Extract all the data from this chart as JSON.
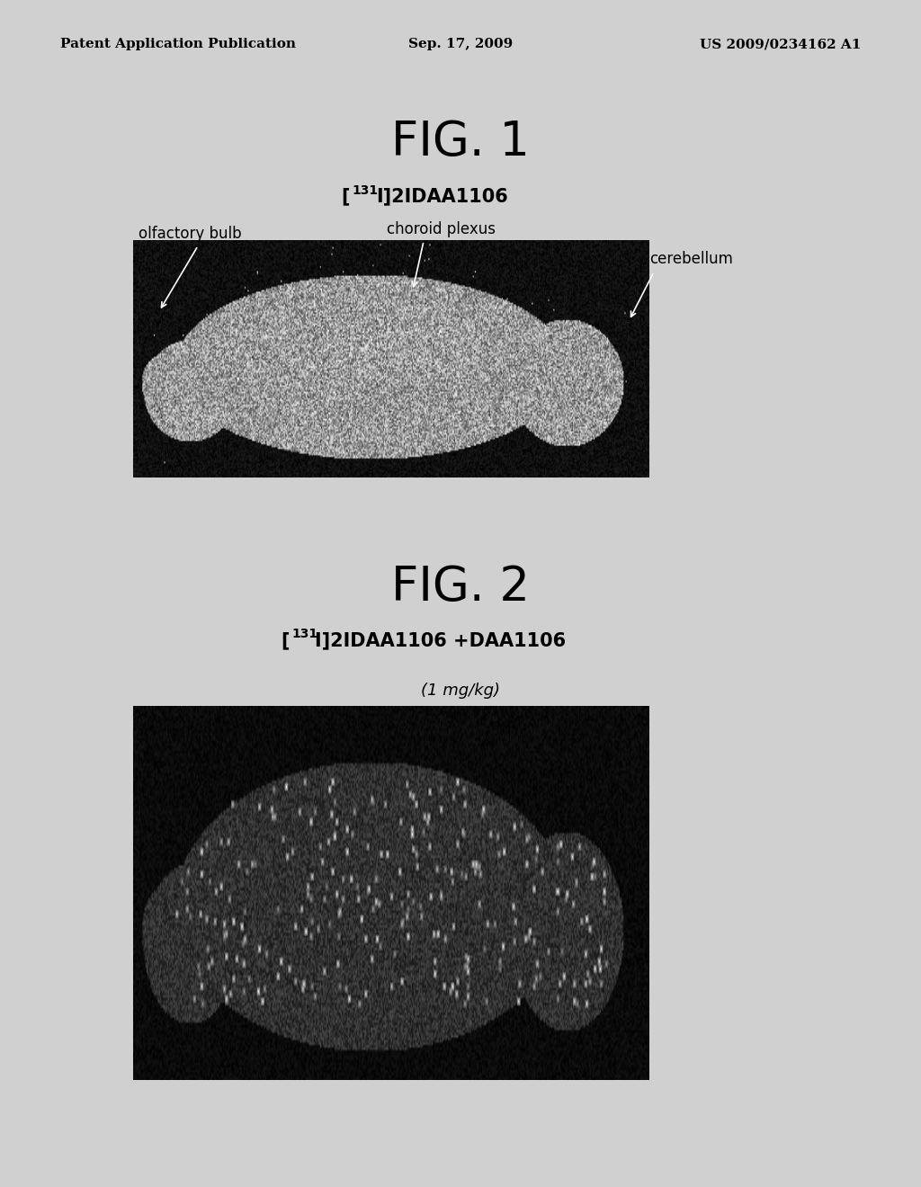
{
  "bg_color": "#d0d0d0",
  "page_bg": "#e8e8e8",
  "header_left": "Patent Application Publication",
  "header_center": "Sep. 17, 2009",
  "header_right": "US 2009/0234162 A1",
  "header_fontsize": 11,
  "fig1_title": "FIG. 1",
  "fig1_title_fontsize": 38,
  "fig1_superscript": "131",
  "fig1_label_main": "I]2IDAA1106",
  "fig1_compound_fontsize": 15,
  "fig1_annotation1": "olfactory bulb",
  "fig1_annotation2": "choroid plexus",
  "fig1_annotation3": "cerebellum",
  "fig1_annotation_fontsize": 12,
  "fig2_title": "FIG. 2",
  "fig2_title_fontsize": 38,
  "fig2_superscript": "131",
  "fig2_label_main": "I]2IDAA1106 +DAA1106",
  "fig2_compound_fontsize": 15,
  "fig2_subtitle": "(1 mg/kg)",
  "fig2_subtitle_fontsize": 13
}
